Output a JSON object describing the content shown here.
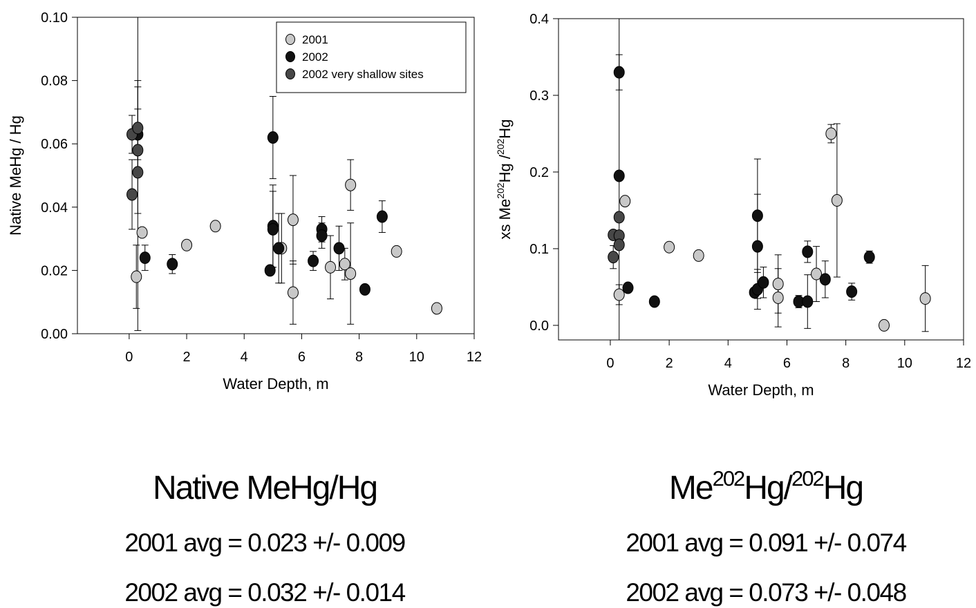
{
  "chart_data": [
    {
      "type": "scatter",
      "xlabel": "Water Depth, m",
      "ylabel": [
        "Native MeHg / Hg"
      ],
      "xlim": [
        -1.8,
        12
      ],
      "ylim": [
        0,
        0.1
      ],
      "xticks": [
        0,
        2,
        4,
        6,
        8,
        10,
        12
      ],
      "yticks": [
        {
          "value": 0,
          "label": "0.00"
        },
        0.02,
        0.04,
        0.06,
        0.08,
        {
          "value": 0.1,
          "label": "0.10"
        }
      ],
      "legend": "upper right",
      "series": [
        {
          "name": "2001",
          "color": "#c8c8c8",
          "x": [
            0.25,
            0.45,
            2,
            3,
            5.3,
            5.7,
            5.7,
            7,
            7.5,
            7.7,
            7.7,
            9.3,
            10.7
          ],
          "values": [
            0.018,
            0.032,
            0.028,
            0.034,
            0.027,
            0.036,
            0.013,
            0.021,
            0.022,
            0.047,
            0.019,
            0.026,
            0.008
          ],
          "errors": [
            0.01,
            null,
            null,
            null,
            0.011,
            0.014,
            0.01,
            0.01,
            0.005,
            0.008,
            0.016,
            null,
            null
          ]
        },
        {
          "name": "2002",
          "color": "#111111",
          "x": [
            0.3,
            0.55,
            1.5,
            4.9,
            5,
            5,
            5,
            5.2,
            6.4,
            6.7,
            6.7,
            7.3,
            8.2,
            8.8
          ],
          "values": [
            0.063,
            0.024,
            0.022,
            0.02,
            0.062,
            0.034,
            0.033,
            0.027,
            0.023,
            0.033,
            0.031,
            0.027,
            0.014,
            0.037
          ],
          "errors": [
            0.008,
            0.004,
            0.003,
            null,
            0.013,
            0.013,
            0.012,
            0.011,
            0.003,
            0.004,
            0.004,
            0.007,
            null,
            0.005
          ]
        },
        {
          "name": "2002 very shallow sites",
          "color": "#474747",
          "x": [
            0.1,
            0.1,
            0.3,
            0.3,
            0.3
          ],
          "values": [
            0.063,
            0.044,
            0.065,
            0.058,
            0.051
          ],
          "errors": [
            0.006,
            0.011,
            0.015,
            0.02,
            0.05
          ]
        }
      ],
      "caption": {
        "title": [
          "Native MeHg/Hg"
        ],
        "lines": [
          "2001 avg = 0.023 +/- 0.009",
          "2002 avg = 0.032 +/- 0.014"
        ]
      }
    },
    {
      "type": "scatter",
      "xlabel": "Water Depth, m",
      "ylabel": [
        "xs Me",
        "202",
        "Hg /",
        "202",
        "Hg"
      ],
      "xlim": [
        -1.76,
        12
      ],
      "ylim": [
        -0.019,
        0.4
      ],
      "xticks": [
        0,
        2,
        4,
        6,
        8,
        10,
        12
      ],
      "yticks": [
        {
          "value": 0,
          "label": "0.0"
        },
        0.1,
        0.2,
        0.3,
        0.4
      ],
      "series": [
        {
          "name": "2001",
          "color": "#c8c8c8",
          "x": [
            0.3,
            0.5,
            2,
            3,
            5.7,
            5.7,
            7,
            7.5,
            7.7,
            9.3,
            10.7
          ],
          "values": [
            0.04,
            0.162,
            0.102,
            0.091,
            0.054,
            0.036,
            0.067,
            0.25,
            0.163,
            0,
            0.035
          ],
          "errors": [
            0.013,
            null,
            null,
            null,
            0.038,
            0.038,
            0.036,
            0.012,
            0.1,
            null,
            0.043
          ]
        },
        {
          "name": "2002",
          "color": "#111111",
          "x": [
            0.3,
            0.3,
            0.6,
            1.5,
            4.9,
            5,
            5,
            5,
            5.2,
            6.4,
            6.7,
            6.7,
            7.3,
            8.2,
            8.8
          ],
          "values": [
            0.33,
            0.195,
            0.049,
            0.031,
            0.043,
            0.143,
            0.103,
            0.047,
            0.056,
            0.031,
            0.096,
            0.031,
            0.06,
            0.044,
            0.089
          ],
          "errors": [
            0.023,
            null,
            null,
            null,
            null,
            0.074,
            0.068,
            0.026,
            0.02,
            0.008,
            0.014,
            0.035,
            0.024,
            0.011,
            0.008
          ]
        },
        {
          "name": "2002 very shallow sites",
          "color": "#474747",
          "x": [
            0.1,
            0.1,
            0.3,
            0.3,
            0.3
          ],
          "values": [
            0.118,
            0.089,
            0.141,
            0.117,
            0.105
          ],
          "errors": [
            null,
            0.015,
            0.26,
            null,
            null
          ]
        }
      ],
      "caption": {
        "title": [
          "Me",
          "202",
          "Hg/",
          "202",
          "Hg"
        ],
        "lines": [
          "2001 avg = 0.091 +/- 0.074",
          "2002 avg = 0.073 +/- 0.048"
        ]
      }
    }
  ]
}
